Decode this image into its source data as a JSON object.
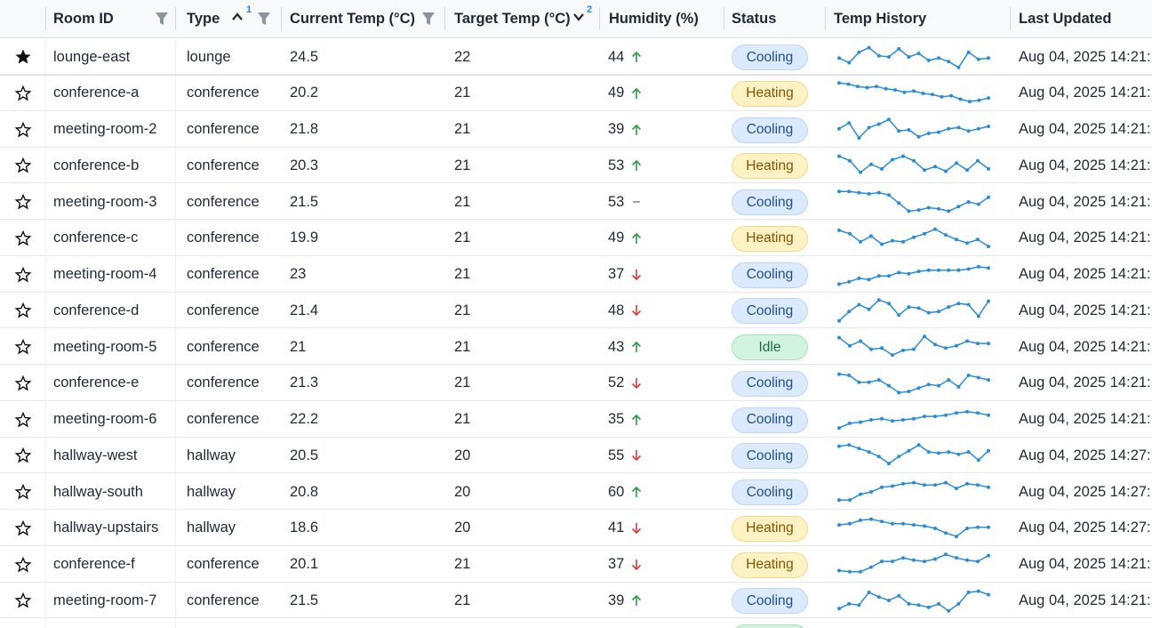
{
  "columns": {
    "room_id": "Room ID",
    "type": "Type",
    "type_sort_rank": "1",
    "current_temp": "Current Temp (°C)",
    "target_temp": "Target Temp (°C)",
    "target_sort_rank": "2",
    "humidity": "Humidity (%)",
    "status": "Status",
    "temp_history": "Temp History",
    "last_updated": "Last Updated"
  },
  "colors": {
    "spark_line": "#2a8bd8",
    "trend_up": "#2e9e44",
    "trend_down": "#e03a3a",
    "trend_flat": "#777777"
  },
  "rows": [
    {
      "starred": true,
      "room_id": "lounge-east",
      "type": "lounge",
      "current_temp": "24.5",
      "target_temp": "22",
      "humidity": "44",
      "trend": "up",
      "status": "Cooling",
      "status_key": "cooling",
      "last_updated": "Aug 04, 2025 14:21:",
      "history": [
        0.55,
        0.75,
        0.3,
        0.1,
        0.45,
        0.5,
        0.15,
        0.5,
        0.35,
        0.65,
        0.55,
        0.7,
        0.95,
        0.3,
        0.6,
        0.55
      ]
    },
    {
      "starred": false,
      "room_id": "conference-a",
      "type": "conference",
      "current_temp": "20.2",
      "target_temp": "21",
      "humidity": "49",
      "trend": "up",
      "status": "Heating",
      "status_key": "heating",
      "last_updated": "Aug 04, 2025 14:21:",
      "history": [
        0.05,
        0.1,
        0.2,
        0.25,
        0.2,
        0.3,
        0.35,
        0.45,
        0.4,
        0.5,
        0.55,
        0.65,
        0.6,
        0.75,
        0.85,
        0.8,
        0.7
      ]
    },
    {
      "starred": false,
      "room_id": "meeting-room-2",
      "type": "conference",
      "current_temp": "21.8",
      "target_temp": "21",
      "humidity": "39",
      "trend": "up",
      "status": "Cooling",
      "status_key": "cooling",
      "last_updated": "Aug 04, 2025 14:21:",
      "history": [
        0.45,
        0.2,
        0.85,
        0.4,
        0.25,
        0.05,
        0.55,
        0.5,
        0.8,
        0.65,
        0.6,
        0.45,
        0.4,
        0.55,
        0.45,
        0.35
      ]
    },
    {
      "starred": false,
      "room_id": "conference-b",
      "type": "conference",
      "current_temp": "20.3",
      "target_temp": "21",
      "humidity": "53",
      "trend": "up",
      "status": "Heating",
      "status_key": "heating",
      "last_updated": "Aug 04, 2025 14:21:",
      "history": [
        0.1,
        0.3,
        0.8,
        0.45,
        0.65,
        0.25,
        0.1,
        0.3,
        0.7,
        0.55,
        0.75,
        0.4,
        0.7,
        0.3,
        0.65
      ]
    },
    {
      "starred": false,
      "room_id": "meeting-room-3",
      "type": "conference",
      "current_temp": "21.5",
      "target_temp": "21",
      "humidity": "53",
      "trend": "flat",
      "status": "Cooling",
      "status_key": "cooling",
      "last_updated": "Aug 04, 2025 14:21:",
      "history": [
        0.05,
        0.05,
        0.1,
        0.15,
        0.1,
        0.2,
        0.55,
        0.9,
        0.85,
        0.75,
        0.8,
        0.9,
        0.7,
        0.5,
        0.6,
        0.3
      ]
    },
    {
      "starred": false,
      "room_id": "conference-c",
      "type": "conference",
      "current_temp": "19.9",
      "target_temp": "21",
      "humidity": "49",
      "trend": "up",
      "status": "Heating",
      "status_key": "heating",
      "last_updated": "Aug 04, 2025 14:21:",
      "history": [
        0.15,
        0.3,
        0.65,
        0.4,
        0.75,
        0.6,
        0.65,
        0.45,
        0.3,
        0.1,
        0.35,
        0.55,
        0.7,
        0.55,
        0.85
      ]
    },
    {
      "starred": false,
      "room_id": "meeting-room-4",
      "type": "conference",
      "current_temp": "23",
      "target_temp": "21",
      "humidity": "37",
      "trend": "down",
      "status": "Cooling",
      "status_key": "cooling",
      "last_updated": "Aug 04, 2025 14:21:",
      "history": [
        0.9,
        0.8,
        0.65,
        0.7,
        0.55,
        0.55,
        0.4,
        0.45,
        0.35,
        0.3,
        0.3,
        0.3,
        0.3,
        0.25,
        0.15,
        0.2
      ]
    },
    {
      "starred": false,
      "room_id": "conference-d",
      "type": "conference",
      "current_temp": "21.4",
      "target_temp": "21",
      "humidity": "48",
      "trend": "down",
      "status": "Cooling",
      "status_key": "cooling",
      "last_updated": "Aug 04, 2025 14:21:",
      "history": [
        0.95,
        0.55,
        0.25,
        0.45,
        0.05,
        0.2,
        0.7,
        0.35,
        0.4,
        0.6,
        0.55,
        0.35,
        0.2,
        0.25,
        0.75,
        0.1
      ]
    },
    {
      "starred": false,
      "room_id": "meeting-room-5",
      "type": "conference",
      "current_temp": "21",
      "target_temp": "21",
      "humidity": "43",
      "trend": "up",
      "status": "Idle",
      "status_key": "idle",
      "last_updated": "Aug 04, 2025 14:21:",
      "history": [
        0.1,
        0.45,
        0.25,
        0.6,
        0.55,
        0.85,
        0.65,
        0.6,
        0.05,
        0.4,
        0.55,
        0.45,
        0.25,
        0.35,
        0.35
      ]
    },
    {
      "starred": false,
      "room_id": "conference-e",
      "type": "conference",
      "current_temp": "21.3",
      "target_temp": "21",
      "humidity": "52",
      "trend": "down",
      "status": "Cooling",
      "status_key": "cooling",
      "last_updated": "Aug 04, 2025 14:21:",
      "history": [
        0.1,
        0.15,
        0.45,
        0.45,
        0.35,
        0.6,
        0.9,
        0.85,
        0.7,
        0.55,
        0.6,
        0.35,
        0.65,
        0.15,
        0.25,
        0.35
      ]
    },
    {
      "starred": false,
      "room_id": "meeting-room-6",
      "type": "conference",
      "current_temp": "22.2",
      "target_temp": "21",
      "humidity": "35",
      "trend": "up",
      "status": "Cooling",
      "status_key": "cooling",
      "last_updated": "Aug 04, 2025 14:21:",
      "history": [
        0.85,
        0.65,
        0.6,
        0.5,
        0.45,
        0.55,
        0.5,
        0.45,
        0.35,
        0.35,
        0.3,
        0.2,
        0.15,
        0.2,
        0.3
      ]
    },
    {
      "starred": false,
      "room_id": "hallway-west",
      "type": "hallway",
      "current_temp": "20.5",
      "target_temp": "20",
      "humidity": "55",
      "trend": "down",
      "status": "Cooling",
      "status_key": "cooling",
      "last_updated": "Aug 04, 2025 14:27:",
      "history": [
        0.1,
        0.05,
        0.2,
        0.35,
        0.55,
        0.85,
        0.55,
        0.3,
        0.05,
        0.35,
        0.4,
        0.35,
        0.45,
        0.35,
        0.7,
        0.3
      ]
    },
    {
      "starred": false,
      "room_id": "hallway-south",
      "type": "hallway",
      "current_temp": "20.8",
      "target_temp": "20",
      "humidity": "60",
      "trend": "up",
      "status": "Cooling",
      "status_key": "cooling",
      "last_updated": "Aug 04, 2025 14:27:",
      "history": [
        0.85,
        0.85,
        0.6,
        0.5,
        0.3,
        0.25,
        0.15,
        0.1,
        0.2,
        0.2,
        0.1,
        0.35,
        0.15,
        0.2,
        0.3
      ]
    },
    {
      "starred": false,
      "room_id": "hallway-upstairs",
      "type": "hallway",
      "current_temp": "18.6",
      "target_temp": "20",
      "humidity": "41",
      "trend": "down",
      "status": "Heating",
      "status_key": "heating",
      "last_updated": "Aug 04, 2025 14:27:",
      "history": [
        0.35,
        0.3,
        0.15,
        0.1,
        0.2,
        0.3,
        0.3,
        0.35,
        0.4,
        0.5,
        0.7,
        0.85,
        0.5,
        0.45,
        0.45
      ]
    },
    {
      "starred": false,
      "room_id": "conference-f",
      "type": "conference",
      "current_temp": "20.1",
      "target_temp": "21",
      "humidity": "37",
      "trend": "down",
      "status": "Heating",
      "status_key": "heating",
      "last_updated": "Aug 04, 2025 14:21:",
      "history": [
        0.75,
        0.8,
        0.8,
        0.6,
        0.35,
        0.35,
        0.2,
        0.3,
        0.35,
        0.25,
        0.05,
        0.2,
        0.3,
        0.35,
        0.1
      ]
    },
    {
      "starred": false,
      "room_id": "meeting-room-7",
      "type": "conference",
      "current_temp": "21.5",
      "target_temp": "21",
      "humidity": "39",
      "trend": "up",
      "status": "Cooling",
      "status_key": "cooling",
      "last_updated": "Aug 04, 2025 14:21:",
      "history": [
        0.85,
        0.65,
        0.7,
        0.15,
        0.35,
        0.5,
        0.3,
        0.65,
        0.7,
        0.8,
        0.65,
        0.95,
        0.65,
        0.15,
        0.1,
        0.25
      ]
    }
  ]
}
